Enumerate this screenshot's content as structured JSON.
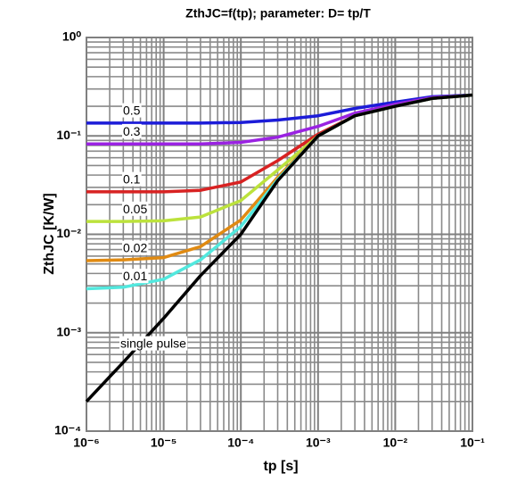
{
  "chart_data": {
    "type": "line",
    "title": "ZthJC=f(tp); parameter: D= tp/T",
    "xlabel": "tp [s]",
    "ylabel": "ZthJC [K/W]",
    "xscale": "log",
    "yscale": "log",
    "grid": true,
    "minor_grid": true,
    "xlim": [
      1e-06,
      0.1
    ],
    "ylim": [
      0.0001,
      1
    ],
    "xticks": [
      {
        "value": 1e-06,
        "label": "10⁻⁶"
      },
      {
        "value": 1e-05,
        "label": "10⁻⁵"
      },
      {
        "value": 0.0001,
        "label": "10⁻⁴"
      },
      {
        "value": 0.001,
        "label": "10⁻³"
      },
      {
        "value": 0.01,
        "label": "10⁻²"
      },
      {
        "value": 0.1,
        "label": "10⁻¹"
      }
    ],
    "yticks": [
      {
        "value": 0.0001,
        "label": "10⁻⁴"
      },
      {
        "value": 0.001,
        "label": "10⁻³"
      },
      {
        "value": 0.01,
        "label": "10⁻²"
      },
      {
        "value": 0.1,
        "label": "10⁻¹"
      },
      {
        "value": 1,
        "label": "10⁰"
      }
    ],
    "x": [
      1e-06,
      3e-06,
      1e-05,
      3e-05,
      0.0001,
      0.0003,
      0.001,
      0.003,
      0.01,
      0.03,
      0.1
    ],
    "series": [
      {
        "name": "0.5",
        "color": "#1c1cd8",
        "values": [
          0.135,
          0.135,
          0.135,
          0.135,
          0.137,
          0.145,
          0.16,
          0.19,
          0.22,
          0.25,
          0.26
        ]
      },
      {
        "name": "0.3",
        "color": "#9a22e2",
        "values": [
          0.083,
          0.083,
          0.083,
          0.083,
          0.086,
          0.097,
          0.125,
          0.17,
          0.21,
          0.245,
          0.26
        ]
      },
      {
        "name": "0.1",
        "color": "#d82222",
        "values": [
          0.027,
          0.027,
          0.027,
          0.028,
          0.034,
          0.056,
          0.104,
          0.16,
          0.2,
          0.24,
          0.26
        ]
      },
      {
        "name": "0.05",
        "color": "#bce23c",
        "values": [
          0.0135,
          0.0135,
          0.0137,
          0.015,
          0.022,
          0.045,
          0.1,
          0.16,
          0.2,
          0.24,
          0.26
        ]
      },
      {
        "name": "0.02",
        "color": "#e08a12",
        "values": [
          0.0054,
          0.0055,
          0.0058,
          0.0075,
          0.014,
          0.038,
          0.1,
          0.16,
          0.2,
          0.24,
          0.26
        ]
      },
      {
        "name": "0.01",
        "color": "#52e8de",
        "values": [
          0.0028,
          0.0029,
          0.0035,
          0.0055,
          0.012,
          0.036,
          0.1,
          0.16,
          0.2,
          0.24,
          0.26
        ]
      },
      {
        "name": "single pulse",
        "color": "#000000",
        "values": [
          0.0002,
          0.0005,
          0.0014,
          0.0038,
          0.01,
          0.035,
          0.1,
          0.16,
          0.2,
          0.24,
          0.26
        ]
      }
    ]
  }
}
